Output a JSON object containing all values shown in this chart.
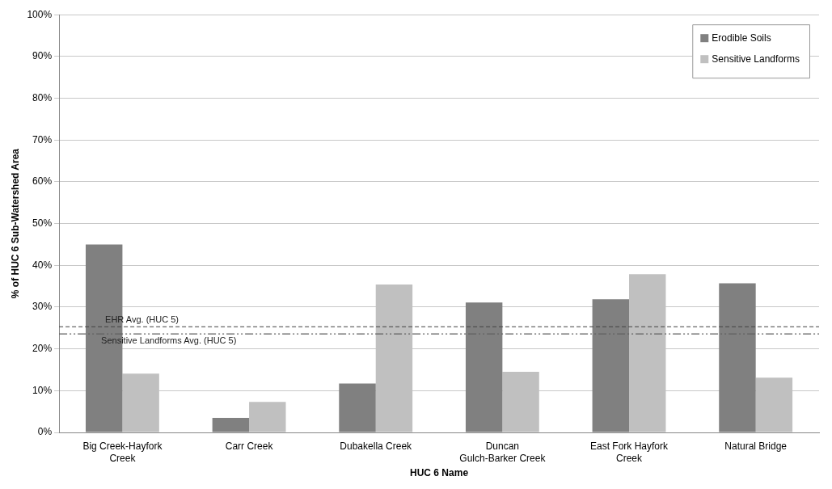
{
  "chart_data": {
    "type": "bar",
    "xlabel": "HUC 6 Name",
    "ylabel": "% of HUC 6 Sub-Watershed Area",
    "categories": [
      "Big Creek-Hayfork Creek",
      "Carr Creek",
      "Dubakella Creek",
      "Duncan Gulch-Barker Creek",
      "East Fork Hayfork Creek",
      "Natural Bridge"
    ],
    "series": [
      {
        "name": "Erodible Soils",
        "color": "#808080",
        "values": [
          45,
          3.5,
          11.7,
          31.1,
          31.9,
          35.7
        ]
      },
      {
        "name": "Sensitive Landforms",
        "color": "#c0c0c0",
        "values": [
          14.1,
          7.3,
          35.4,
          14.5,
          37.9,
          13.1
        ]
      }
    ],
    "ylim": [
      0,
      100
    ],
    "yticks": [
      {
        "value": 0,
        "label": "0%"
      },
      {
        "value": 10,
        "label": "10%"
      },
      {
        "value": 20,
        "label": "20%"
      },
      {
        "value": 30,
        "label": "30%"
      },
      {
        "value": 40,
        "label": "40%"
      },
      {
        "value": 50,
        "label": "50%"
      },
      {
        "value": 60,
        "label": "60%"
      },
      {
        "value": 70,
        "label": "70%"
      },
      {
        "value": 80,
        "label": "80%"
      },
      {
        "value": 90,
        "label": "90%"
      },
      {
        "value": 100,
        "label": "100%"
      }
    ],
    "ref_lines": [
      {
        "axis": "y",
        "value": 25.3,
        "label": "EHR Avg. (HUC 5)",
        "color": "#404040",
        "line_style": "dashed"
      },
      {
        "axis": "y",
        "value": 23.6,
        "label": "Sensitive Landforms Avg. (HUC 5)",
        "color": "#606060",
        "line_style": "dashdotdot"
      }
    ],
    "grid": "y",
    "legend": "top right"
  }
}
